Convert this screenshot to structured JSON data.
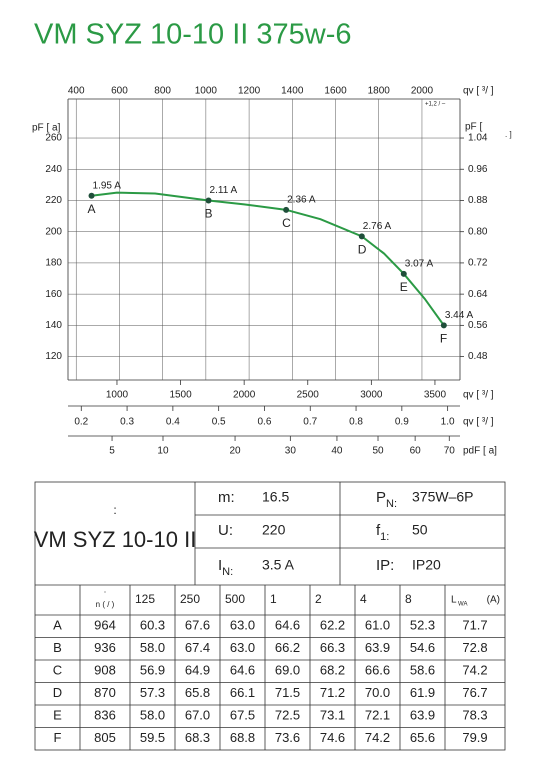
{
  "title": "VM SYZ 10-10 II 375w-6",
  "chart_data": {
    "type": "line",
    "color": "#2b9a45",
    "grid": true,
    "ylabel": "pF [  a]",
    "ylim": [
      105,
      285
    ],
    "yticks": [
      120,
      140,
      160,
      180,
      200,
      220,
      240,
      260
    ],
    "y2label": "pF [",
    "y2label_end": ". ]",
    "y2lim": [
      0.42,
      1.14
    ],
    "y2ticks": [
      0.48,
      0.56,
      0.64,
      0.72,
      {
        "value": 0.8,
        "label": "0.80"
      },
      0.88,
      0.96,
      1.04
    ],
    "x_axes": [
      {
        "label": "qv [  ³/  ]",
        "note": "+1,2 / –",
        "xlim": [
          362,
          2176
        ],
        "xticks": [
          400,
          600,
          800,
          1000,
          1200,
          1400,
          1600,
          1800,
          2000
        ]
      },
      {
        "label": "qv [  ³/  ]",
        "xlim": [
          615,
          3697
        ],
        "xticks": [
          1000,
          1500,
          2000,
          2500,
          3000,
          3500
        ]
      },
      {
        "label": "qv [  ³/  ]",
        "xlim": [
          0.171,
          1.027
        ],
        "xticks": [
          0.2,
          0.3,
          0.4,
          0.5,
          0.6,
          0.7,
          0.8,
          0.9,
          {
            "value": 1,
            "label": "1.0"
          }
        ]
      },
      {
        "label": "pdF [  a]",
        "scale": "sqrt",
        "xlim": [
          2.06,
          73.3
        ],
        "xticks": [
          5,
          10,
          20,
          30,
          40,
          50,
          60,
          70
        ]
      }
    ],
    "x": [
      800,
      1000,
      1300,
      1720,
      2000,
      2330,
      2600,
      2925,
      3100,
      3255,
      3420,
      3570
    ],
    "values": [
      223,
      225,
      224.5,
      220,
      217.5,
      214,
      208,
      197,
      186,
      173,
      157,
      140
    ],
    "points": [
      {
        "name": "A",
        "label": "1.95 A",
        "x": 800,
        "y": 223
      },
      {
        "name": "B",
        "label": "2.11 A",
        "x": 1720,
        "y": 220
      },
      {
        "name": "C",
        "label": "2.36 A",
        "x": 2330,
        "y": 214
      },
      {
        "name": "D",
        "label": "2.76 A",
        "x": 2925,
        "y": 197
      },
      {
        "name": "E",
        "label": "3.07 A",
        "x": 3255,
        "y": 173
      },
      {
        "name": "F",
        "label": "3.44 A",
        "x": 3570,
        "y": 140
      }
    ]
  },
  "specs": {
    "model_mark": ":",
    "model": "VM SYZ 10-10 II",
    "rows": [
      [
        {
          "label": "m:",
          "value": "16.5"
        },
        {
          "label": "P",
          "sub": "N:",
          "value": "375W–6P"
        }
      ],
      [
        {
          "label": "U:",
          "value": "220"
        },
        {
          "label": "f",
          "sub": "1:",
          "value": "50"
        }
      ],
      [
        {
          "label": "I",
          "sub": "N:",
          "value": "3.5  A"
        },
        {
          "label": "IP:",
          "value": "IP20"
        }
      ]
    ]
  },
  "noise": {
    "n_mark": "·",
    "header": [
      "n (  /  )",
      "125",
      "250",
      "500",
      "1",
      "2",
      "4",
      "8"
    ],
    "lwa": {
      "label": "L",
      "sub": "WA",
      "unit": "(A)"
    },
    "rows": [
      [
        "A",
        "964",
        "60.3",
        "67.6",
        "63.0",
        "64.6",
        "62.2",
        "61.0",
        "52.3",
        "71.7"
      ],
      [
        "B",
        "936",
        "58.0",
        "67.4",
        "63.0",
        "66.2",
        "66.3",
        "63.9",
        "54.6",
        "72.8"
      ],
      [
        "C",
        "908",
        "56.9",
        "64.9",
        "64.6",
        "69.0",
        "68.2",
        "66.6",
        "58.6",
        "74.2"
      ],
      [
        "D",
        "870",
        "57.3",
        "65.8",
        "66.1",
        "71.5",
        "71.2",
        "70.0",
        "61.9",
        "76.7"
      ],
      [
        "E",
        "836",
        "58.0",
        "67.0",
        "67.5",
        "72.5",
        "73.1",
        "72.1",
        "63.9",
        "78.3"
      ],
      [
        "F",
        "805",
        "59.5",
        "68.3",
        "68.8",
        "73.6",
        "74.6",
        "74.2",
        "65.6",
        "79.9"
      ]
    ]
  }
}
